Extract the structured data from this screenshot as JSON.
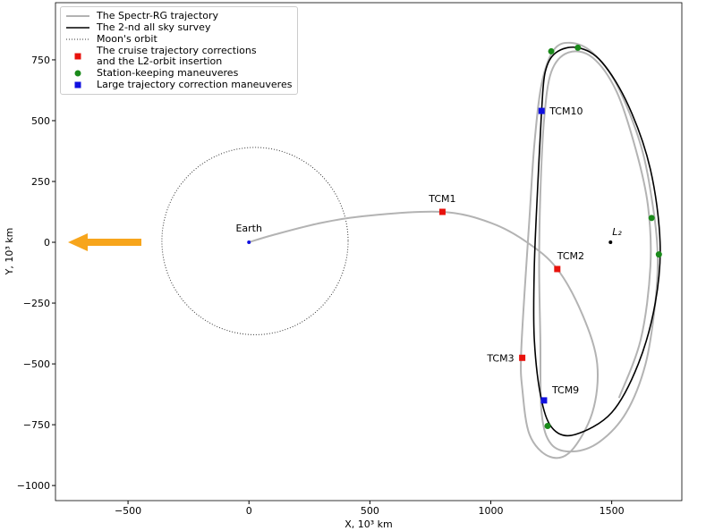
{
  "chart_data": {
    "type": "trajectory",
    "xlabel": "X, 10³ km",
    "ylabel": "Y, 10³ km",
    "xlim": [
      -800,
      1790
    ],
    "ylim": [
      -1062,
      985
    ],
    "xticks": [
      {
        "value": -500,
        "label": "−500"
      },
      0,
      500,
      1000,
      1500
    ],
    "yticks": [
      {
        "value": -1000,
        "label": "−1000"
      },
      {
        "value": -750,
        "label": "−750"
      },
      {
        "value": -500,
        "label": "−500"
      },
      {
        "value": -250,
        "label": "−250"
      },
      0,
      250,
      500,
      750
    ],
    "legend": "upper left",
    "lines": [
      {
        "name": "The Spectr-RG trajectory",
        "color": "#b3b3b3",
        "x": [
          0,
          100,
          300,
          500,
          800,
          1000,
          1150,
          1275,
          1380,
          1440,
          1420,
          1330,
          1240,
          1160,
          1130,
          1125,
          1140,
          1160,
          1180,
          1210,
          1260,
          1330,
          1420,
          1520,
          1620,
          1670,
          1690,
          1680,
          1640,
          1560,
          1450,
          1340,
          1250,
          1210,
          1205,
          1200,
          1205,
          1220,
          1250,
          1320,
          1420,
          1520,
          1600,
          1650,
          1660,
          1620,
          1530
        ],
        "y": [
          0,
          30,
          80,
          110,
          125,
          80,
          0,
          -110,
          -300,
          -500,
          -700,
          -860,
          -880,
          -790,
          -600,
          -470,
          -200,
          100,
          400,
          650,
          790,
          820,
          780,
          650,
          400,
          150,
          -50,
          -250,
          -500,
          -700,
          -820,
          -860,
          -830,
          -700,
          -400,
          -100,
          200,
          500,
          700,
          780,
          760,
          620,
          380,
          150,
          -100,
          -400,
          -640
        ]
      },
      {
        "name": "The 2-nd all sky survey",
        "color": "#000000",
        "x": [
          1210,
          1225,
          1270,
          1360,
          1460,
          1570,
          1660,
          1700,
          1680,
          1610,
          1500,
          1350,
          1260,
          1210,
          1180,
          1180,
          1195,
          1210
        ],
        "y": [
          540,
          700,
          780,
          800,
          740,
          560,
          300,
          0,
          -250,
          -500,
          -700,
          -790,
          -770,
          -650,
          -400,
          -100,
          250,
          540
        ]
      }
    ],
    "moon_orbit": {
      "name": "Moon's orbit",
      "color": "#333333",
      "center": [
        25,
        5
      ],
      "radius": 385
    },
    "points": [
      {
        "name": "The cruise trajectory corrections\nand the L2-orbit insertion",
        "color": "#e8120c",
        "marker": "square",
        "points": [
          {
            "label": "TCM1",
            "x": 800,
            "y": 125
          },
          {
            "label": "TCM2",
            "x": 1275,
            "y": -110
          },
          {
            "label": "TCM3",
            "x": 1130,
            "y": -475
          }
        ]
      },
      {
        "name": "Station-keeping maneuveres",
        "color": "#1a8a1a",
        "marker": "circle",
        "points": [
          {
            "x": 1250,
            "y": 785
          },
          {
            "x": 1360,
            "y": 800
          },
          {
            "x": 1665,
            "y": 100
          },
          {
            "x": 1695,
            "y": -50
          },
          {
            "x": 1235,
            "y": -755
          }
        ]
      },
      {
        "name": "Large trajectory correction maneuveres",
        "color": "#1010e0",
        "marker": "square",
        "points": [
          {
            "label": "TCM10",
            "x": 1210,
            "y": 540
          },
          {
            "label": "TCM9",
            "x": 1220,
            "y": -650
          }
        ]
      }
    ],
    "bodies": [
      {
        "label": "Earth",
        "x": 0,
        "y": 0,
        "color": "#1010e0"
      },
      {
        "label": "L₂",
        "x": 1495,
        "y": 0,
        "color": "#000000"
      }
    ]
  }
}
